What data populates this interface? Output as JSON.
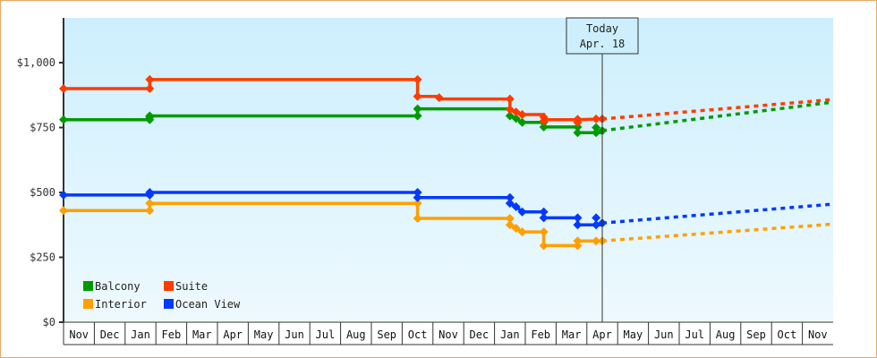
{
  "chart_data": {
    "type": "line",
    "subtype": "step-with-forecast",
    "title": "",
    "xlabel": "",
    "ylabel": "",
    "ylim": [
      0,
      1170
    ],
    "y_ticks": [
      {
        "value": 0,
        "label": "$0"
      },
      {
        "value": 250,
        "label": "$250"
      },
      {
        "value": 500,
        "label": "$500"
      },
      {
        "value": 750,
        "label": "$750"
      },
      {
        "value": 1000,
        "label": "$1,000"
      }
    ],
    "x_tick_labels": [
      "Nov",
      "Dec",
      "Jan",
      "Feb",
      "Mar",
      "Apr",
      "May",
      "Jun",
      "Jul",
      "Aug",
      "Sep",
      "Oct",
      "Nov",
      "Dec",
      "Jan",
      "Feb",
      "Mar",
      "Apr",
      "May",
      "Jun",
      "Jul",
      "Aug",
      "Sep",
      "Oct",
      "Nov"
    ],
    "x_unit": "months since start (0 = start of first Nov)",
    "grid": false,
    "legend_position": "bottom-left inside",
    "today_marker": {
      "line1": "Today",
      "line2": "Apr. 18",
      "x": 17.5
    },
    "series": [
      {
        "name": "Balcony",
        "color": "#009a00",
        "history": [
          [
            0,
            780
          ],
          [
            2.8,
            780
          ],
          [
            2.8,
            795
          ],
          [
            11.5,
            795
          ],
          [
            11.5,
            822
          ],
          [
            14.5,
            822
          ],
          [
            14.5,
            795
          ],
          [
            14.7,
            785
          ],
          [
            14.9,
            770
          ],
          [
            15.6,
            770
          ],
          [
            15.6,
            752
          ],
          [
            16.7,
            752
          ],
          [
            16.7,
            730
          ],
          [
            17.5,
            730
          ],
          [
            17.5,
            738
          ]
        ],
        "markers": [
          [
            0,
            780
          ],
          [
            2.8,
            780
          ],
          [
            2.8,
            790
          ],
          [
            2.8,
            795
          ],
          [
            11.5,
            795
          ],
          [
            11.5,
            822
          ],
          [
            14.5,
            795
          ],
          [
            14.7,
            785
          ],
          [
            14.9,
            770
          ],
          [
            15.6,
            770
          ],
          [
            15.6,
            752
          ],
          [
            16.7,
            752
          ],
          [
            16.7,
            730
          ],
          [
            17.3,
            730
          ],
          [
            17.3,
            750
          ],
          [
            17.5,
            738
          ]
        ],
        "forecast": [
          [
            17.5,
            738
          ],
          [
            25,
            848
          ]
        ]
      },
      {
        "name": "Suite",
        "color": "#ff3c00",
        "history": [
          [
            0,
            900
          ],
          [
            2.8,
            900
          ],
          [
            2.8,
            935
          ],
          [
            11.5,
            935
          ],
          [
            11.5,
            870
          ],
          [
            12.2,
            870
          ],
          [
            12.2,
            860
          ],
          [
            14.5,
            860
          ],
          [
            14.5,
            820
          ],
          [
            14.7,
            810
          ],
          [
            14.9,
            800
          ],
          [
            15.6,
            800
          ],
          [
            15.6,
            780
          ],
          [
            16.7,
            780
          ],
          [
            16.7,
            780
          ],
          [
            17.5,
            783
          ]
        ],
        "markers": [
          [
            0,
            900
          ],
          [
            2.8,
            900
          ],
          [
            2.8,
            935
          ],
          [
            11.5,
            935
          ],
          [
            11.5,
            870
          ],
          [
            12.2,
            865
          ],
          [
            14.5,
            860
          ],
          [
            14.5,
            820
          ],
          [
            14.7,
            810
          ],
          [
            14.9,
            800
          ],
          [
            15.6,
            790
          ],
          [
            15.6,
            775
          ],
          [
            16.7,
            782
          ],
          [
            16.7,
            770
          ],
          [
            17.3,
            783
          ],
          [
            17.5,
            783
          ]
        ],
        "forecast": [
          [
            17.5,
            783
          ],
          [
            25,
            858
          ]
        ]
      },
      {
        "name": "Interior",
        "color": "#ffa000",
        "history": [
          [
            0,
            430
          ],
          [
            2.8,
            430
          ],
          [
            2.8,
            458
          ],
          [
            11.5,
            458
          ],
          [
            11.5,
            400
          ],
          [
            14.5,
            400
          ],
          [
            14.5,
            375
          ],
          [
            14.7,
            362
          ],
          [
            14.9,
            348
          ],
          [
            15.6,
            348
          ],
          [
            15.6,
            295
          ],
          [
            16.7,
            295
          ],
          [
            16.7,
            313
          ],
          [
            17.5,
            313
          ]
        ],
        "markers": [
          [
            0,
            430
          ],
          [
            2.8,
            430
          ],
          [
            2.8,
            458
          ],
          [
            11.5,
            458
          ],
          [
            11.5,
            400
          ],
          [
            14.5,
            400
          ],
          [
            14.5,
            375
          ],
          [
            14.7,
            362
          ],
          [
            14.9,
            348
          ],
          [
            15.6,
            348
          ],
          [
            15.6,
            295
          ],
          [
            16.7,
            295
          ],
          [
            16.7,
            313
          ],
          [
            17.3,
            313
          ],
          [
            17.5,
            313
          ]
        ],
        "forecast": [
          [
            17.5,
            313
          ],
          [
            25,
            378
          ]
        ]
      },
      {
        "name": "Ocean View",
        "color": "#0039ff",
        "history": [
          [
            0,
            490
          ],
          [
            2.8,
            490
          ],
          [
            2.8,
            500
          ],
          [
            11.5,
            500
          ],
          [
            11.5,
            480
          ],
          [
            14.5,
            480
          ],
          [
            14.5,
            458
          ],
          [
            14.7,
            445
          ],
          [
            14.9,
            425
          ],
          [
            15.6,
            425
          ],
          [
            15.6,
            402
          ],
          [
            16.7,
            402
          ],
          [
            16.7,
            375
          ],
          [
            17.5,
            375
          ],
          [
            17.5,
            382
          ]
        ],
        "markers": [
          [
            0,
            490
          ],
          [
            2.8,
            490
          ],
          [
            2.8,
            500
          ],
          [
            11.5,
            500
          ],
          [
            11.5,
            480
          ],
          [
            14.5,
            480
          ],
          [
            14.5,
            458
          ],
          [
            14.7,
            445
          ],
          [
            14.9,
            425
          ],
          [
            15.6,
            425
          ],
          [
            15.6,
            402
          ],
          [
            16.7,
            402
          ],
          [
            16.7,
            375
          ],
          [
            17.3,
            375
          ],
          [
            17.3,
            402
          ],
          [
            17.5,
            382
          ]
        ],
        "forecast": [
          [
            17.5,
            382
          ],
          [
            25,
            455
          ]
        ]
      }
    ]
  },
  "legend": [
    {
      "label": "Balcony",
      "color": "#009a00"
    },
    {
      "label": "Suite",
      "color": "#ff3c00"
    },
    {
      "label": "Interior",
      "color": "#ffa000"
    },
    {
      "label": "Ocean View",
      "color": "#0039ff"
    }
  ],
  "today": {
    "line1": "Today",
    "line2": "Apr. 18"
  }
}
